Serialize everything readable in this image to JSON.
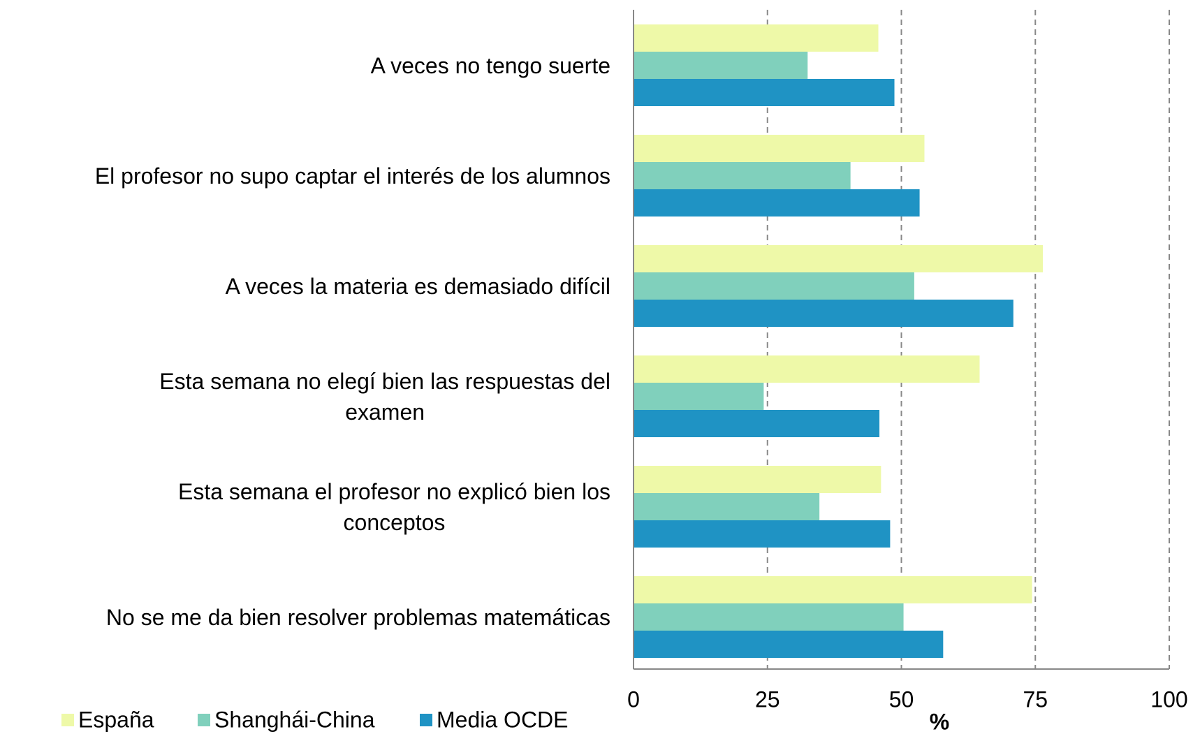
{
  "chart_data": {
    "type": "hbar",
    "xlabel": "%",
    "categories": [
      "A veces no tengo suerte",
      "El profesor no supo captar el interés de los alumnos",
      "A veces la materia es demasiado difícil",
      "Esta semana no elegí bien las respuestas del\nexamen",
      "Esta semana el profesor no explicó bien los\nconceptos",
      "No se me da bien resolver problemas matemáticas"
    ],
    "series": [
      {
        "name": "España",
        "color": "#eef9a8",
        "values": [
          45.7,
          54.3,
          76.4,
          64.6,
          46.2,
          74.4
        ]
      },
      {
        "name": "Shanghái-China",
        "color": "#80d0bc",
        "values": [
          32.5,
          40.5,
          52.4,
          24.3,
          34.7,
          50.4
        ]
      },
      {
        "name": "Media OCDE",
        "color": "#1f93c4",
        "values": [
          48.7,
          53.4,
          70.9,
          45.9,
          47.9,
          57.8
        ]
      }
    ],
    "xlim": [
      0,
      100
    ],
    "xticks": [
      0,
      25,
      50,
      75,
      100
    ],
    "grid": true,
    "legend": "bottom-left"
  }
}
